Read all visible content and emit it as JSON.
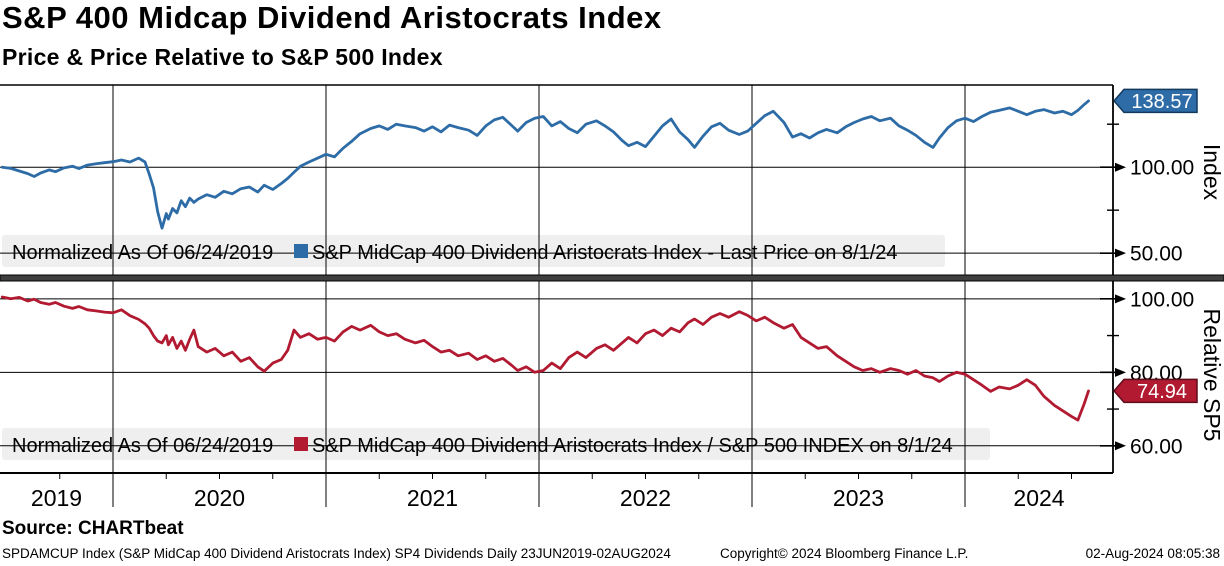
{
  "title": "S&P 400 Midcap Dividend Aristocrats Index",
  "subtitle": "Price & Price Relative to S&P 500 Index",
  "colors": {
    "blue": "#2d6ca6",
    "blue_border": "#123a5e",
    "red": "#b11a31",
    "red_border": "#5f0d1d",
    "grid": "#000000",
    "legend_bg": "#efefef",
    "divider": "#3f3f3f"
  },
  "top_panel": {
    "axis_title": "Index",
    "last_value_label": "138.57",
    "legend": {
      "prefix": "Normalized As Of 06/24/2019",
      "series": "S&P MidCap 400 Dividend Aristocrats Index - Last Price on 8/1/24"
    }
  },
  "bottom_panel": {
    "axis_title": "Relative SP5",
    "last_value_label": "74.94",
    "legend": {
      "prefix": "Normalized As Of 06/24/2019",
      "series": "S&P MidCap 400 Dividend Aristocrats Index / S&P 500 INDEX on 8/1/24"
    }
  },
  "xaxis": {
    "year_labels": [
      "2019",
      "2020",
      "2021",
      "2022",
      "2023",
      "2024"
    ],
    "year_boundaries": [
      2020,
      2021,
      2022,
      2023,
      2024
    ],
    "range": [
      2019.475,
      2024.59
    ]
  },
  "footer": {
    "source": "Source: CHARTbeat",
    "left": "SPDAMCUP Index (S&P MidCap 400 Dividend Aristocrats Index) SP4 Dividends  Daily 23JUN2019-02AUG2024",
    "center": "Copyright© 2024 Bloomberg Finance L.P.",
    "right": "02-Aug-2024 08:05:38"
  },
  "chart_data": [
    {
      "type": "line",
      "panel": "top",
      "title": "S&P MidCap 400 Dividend Aristocrats Index - Last Price on 8/1/24",
      "ylabel": "Index",
      "ylim": [
        37.3,
        147.8
      ],
      "yticks": [
        {
          "value": 100,
          "label": "100.00"
        },
        {
          "value": 50,
          "label": "50.00"
        }
      ],
      "minor_yticks": [
        125,
        75
      ],
      "last_value": 138.57,
      "grid": true,
      "series": [
        {
          "name": "S&P MidCap 400 Dividend Aristocrats Index",
          "color": "#2d6ca6",
          "x": [
            2019.48,
            2019.52,
            2019.56,
            2019.6,
            2019.63,
            2019.66,
            2019.7,
            2019.73,
            2019.77,
            2019.81,
            2019.84,
            2019.88,
            2019.92,
            2019.96,
            2020.0,
            2020.04,
            2020.08,
            2020.12,
            2020.15,
            2020.17,
            2020.19,
            2020.21,
            2020.23,
            2020.25,
            2020.26,
            2020.28,
            2020.3,
            2020.32,
            2020.34,
            2020.36,
            2020.38,
            2020.4,
            2020.44,
            2020.48,
            2020.52,
            2020.56,
            2020.6,
            2020.64,
            2020.68,
            2020.71,
            2020.75,
            2020.79,
            2020.82,
            2020.85,
            2020.88,
            2020.92,
            2020.96,
            2021.0,
            2021.04,
            2021.08,
            2021.12,
            2021.16,
            2021.21,
            2021.25,
            2021.29,
            2021.33,
            2021.37,
            2021.42,
            2021.46,
            2021.5,
            2021.54,
            2021.58,
            2021.62,
            2021.67,
            2021.71,
            2021.75,
            2021.79,
            2021.83,
            2021.87,
            2021.9,
            2021.94,
            2021.98,
            2022.02,
            2022.06,
            2022.1,
            2022.14,
            2022.18,
            2022.22,
            2022.27,
            2022.31,
            2022.35,
            2022.39,
            2022.42,
            2022.46,
            2022.5,
            2022.54,
            2022.58,
            2022.62,
            2022.66,
            2022.7,
            2022.73,
            2022.77,
            2022.81,
            2022.85,
            2022.89,
            2022.94,
            2022.98,
            2023.02,
            2023.06,
            2023.1,
            2023.15,
            2023.19,
            2023.23,
            2023.27,
            2023.31,
            2023.35,
            2023.4,
            2023.44,
            2023.48,
            2023.52,
            2023.56,
            2023.6,
            2023.65,
            2023.69,
            2023.73,
            2023.77,
            2023.81,
            2023.85,
            2023.88,
            2023.92,
            2023.96,
            2024.0,
            2024.04,
            2024.08,
            2024.12,
            2024.16,
            2024.21,
            2024.25,
            2024.29,
            2024.33,
            2024.37,
            2024.42,
            2024.46,
            2024.5,
            2024.53,
            2024.56,
            2024.58
          ],
          "y": [
            100,
            99.3,
            97.8,
            96.3,
            94.6,
            96.6,
            98.4,
            97.4,
            99.6,
            100.6,
            99.2,
            101.2,
            102,
            102.6,
            103.2,
            104.2,
            103,
            105.3,
            103,
            96,
            88,
            74,
            64.5,
            73,
            69.8,
            76,
            73.4,
            80.5,
            77,
            82,
            79.5,
            81.5,
            84,
            82.5,
            86,
            84.5,
            87.5,
            88.5,
            85.5,
            89.5,
            87,
            90.5,
            93.5,
            97,
            100.5,
            103,
            105.2,
            107.5,
            106,
            111,
            115,
            119.5,
            122.5,
            124,
            122,
            125,
            124,
            123,
            121,
            123.5,
            120.5,
            124.5,
            123,
            121.5,
            118.5,
            124,
            127.5,
            129,
            124.5,
            121,
            126,
            128.5,
            129.5,
            124,
            126.5,
            122.5,
            120,
            125,
            127,
            124,
            120.5,
            115.5,
            112.5,
            114.5,
            112,
            118,
            124,
            128,
            120.5,
            116,
            111.5,
            118,
            123.5,
            125.5,
            121.5,
            119,
            121,
            125.5,
            130,
            132.5,
            126,
            117.5,
            119.5,
            117,
            120,
            122,
            120,
            123.5,
            126,
            128,
            129.5,
            127,
            128.5,
            124,
            121.5,
            118.5,
            114.5,
            111.5,
            117,
            123,
            127,
            128.5,
            126.5,
            129.5,
            132,
            133,
            134.5,
            132.5,
            130.5,
            132.5,
            133.5,
            131.5,
            132.5,
            130.5,
            133,
            136.5,
            138.57
          ]
        }
      ]
    },
    {
      "type": "line",
      "panel": "bottom",
      "title": "S&P MidCap 400 Dividend Aristocrats Index / S&P 500 INDEX on 8/1/24",
      "ylabel": "Relative SP5",
      "ylim": [
        52.6,
        104.85
      ],
      "yticks": [
        {
          "value": 100,
          "label": "100.00"
        },
        {
          "value": 80,
          "label": "80.00"
        },
        {
          "value": 60,
          "label": "60.00"
        }
      ],
      "minor_yticks": [
        90,
        70
      ],
      "last_value": 74.94,
      "grid": true,
      "series": [
        {
          "name": "S&P MidCap 400 Dividend Aristocrats Index / S&P 500 INDEX",
          "color": "#b11a31",
          "x": [
            2019.48,
            2019.52,
            2019.56,
            2019.6,
            2019.63,
            2019.66,
            2019.7,
            2019.73,
            2019.77,
            2019.81,
            2019.84,
            2019.88,
            2019.92,
            2019.96,
            2020.0,
            2020.04,
            2020.08,
            2020.12,
            2020.15,
            2020.17,
            2020.19,
            2020.21,
            2020.23,
            2020.25,
            2020.26,
            2020.28,
            2020.3,
            2020.32,
            2020.34,
            2020.36,
            2020.38,
            2020.4,
            2020.44,
            2020.48,
            2020.52,
            2020.56,
            2020.6,
            2020.64,
            2020.68,
            2020.71,
            2020.75,
            2020.79,
            2020.82,
            2020.85,
            2020.88,
            2020.92,
            2020.96,
            2021.0,
            2021.04,
            2021.08,
            2021.12,
            2021.16,
            2021.21,
            2021.25,
            2021.29,
            2021.33,
            2021.37,
            2021.42,
            2021.46,
            2021.5,
            2021.54,
            2021.58,
            2021.62,
            2021.67,
            2021.71,
            2021.75,
            2021.79,
            2021.83,
            2021.87,
            2021.9,
            2021.94,
            2021.98,
            2022.02,
            2022.06,
            2022.1,
            2022.14,
            2022.18,
            2022.22,
            2022.27,
            2022.31,
            2022.35,
            2022.39,
            2022.42,
            2022.46,
            2022.5,
            2022.54,
            2022.58,
            2022.62,
            2022.66,
            2022.7,
            2022.73,
            2022.77,
            2022.81,
            2022.85,
            2022.89,
            2022.94,
            2022.98,
            2023.02,
            2023.06,
            2023.1,
            2023.15,
            2023.19,
            2023.23,
            2023.27,
            2023.31,
            2023.35,
            2023.4,
            2023.44,
            2023.48,
            2023.52,
            2023.56,
            2023.6,
            2023.65,
            2023.69,
            2023.73,
            2023.77,
            2023.81,
            2023.85,
            2023.88,
            2023.92,
            2023.96,
            2024.0,
            2024.04,
            2024.08,
            2024.12,
            2024.16,
            2024.21,
            2024.25,
            2024.29,
            2024.33,
            2024.37,
            2024.42,
            2024.46,
            2024.5,
            2024.53,
            2024.56,
            2024.58
          ],
          "y": [
            100.5,
            100,
            100.4,
            99.4,
            99.9,
            99,
            98.5,
            99,
            98,
            97.4,
            97.9,
            97,
            96.7,
            96.4,
            96.2,
            97,
            95.4,
            94.4,
            93.2,
            92,
            90,
            88.5,
            88,
            90,
            87.5,
            89.5,
            86.5,
            88.5,
            86,
            89,
            91.5,
            87,
            85.5,
            86.5,
            84.5,
            85.5,
            83,
            84,
            81.5,
            80.3,
            82.5,
            83.5,
            86,
            91.5,
            89.5,
            90.5,
            89,
            89.5,
            88.5,
            91,
            92.5,
            91.5,
            92.8,
            91,
            90,
            90.5,
            89,
            88,
            88.7,
            87,
            85.5,
            86,
            84.5,
            85.2,
            83.5,
            84.5,
            83,
            83.8,
            82,
            80.5,
            81.5,
            80,
            80.5,
            82.5,
            81,
            84,
            85.5,
            84,
            86.5,
            87.5,
            86,
            88,
            89.5,
            88,
            90.5,
            91.5,
            90,
            92,
            91,
            93.5,
            94.5,
            93,
            95,
            96,
            95,
            96.5,
            95.5,
            94,
            95,
            93.5,
            92,
            93,
            89.5,
            88,
            86.5,
            87,
            84.5,
            83,
            81.5,
            80.5,
            81,
            80,
            81,
            80.5,
            79.5,
            80.5,
            79,
            78.5,
            77.5,
            79,
            80,
            79.5,
            78,
            76.5,
            74.8,
            76,
            75.5,
            76.5,
            78,
            76.5,
            73.5,
            71,
            69.5,
            68,
            67,
            71.5,
            74.94
          ]
        }
      ]
    }
  ]
}
